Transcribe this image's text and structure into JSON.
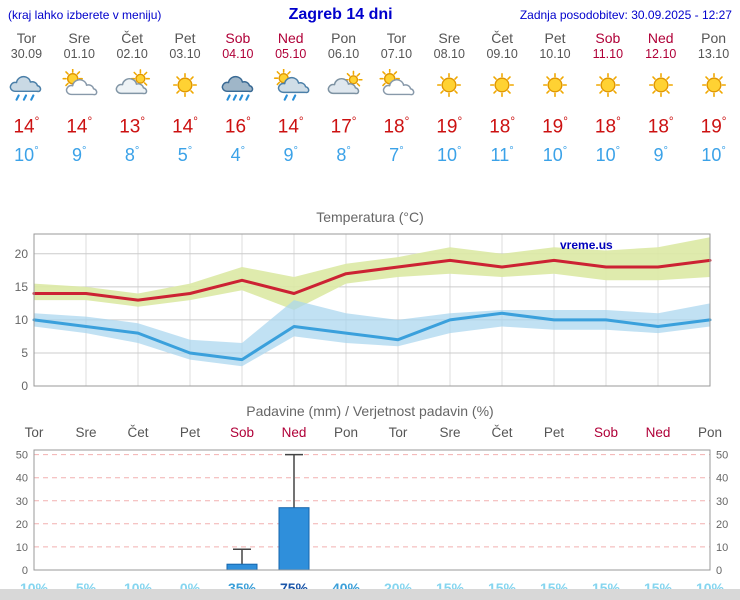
{
  "header": {
    "menu_note": "(kraj lahko izberete v meniju)",
    "title": "Zagreb 14 dni",
    "last_update": "Zadnja posodobitev: 30.09.2025 - 12:27"
  },
  "symbols": {
    "degree": "°"
  },
  "colors": {
    "link_blue": "#0000cc",
    "weekday_gray": "#555555",
    "weekend_red": "#b00038",
    "high_temp_red": "#cc1111",
    "low_temp_blue": "#3ba2e8",
    "prob_light": "#85d5ef",
    "prob_medium": "#3b9fd8",
    "prob_dark": "#1a55a8",
    "bottom_bar_gray": "#d8d8d8",
    "watermark_blue": "#0000bb"
  },
  "days": [
    {
      "name": "Tor",
      "date": "30.09",
      "weekend": false,
      "icon": "rain",
      "high": 14,
      "low": 10
    },
    {
      "name": "Sre",
      "date": "01.10",
      "weekend": false,
      "icon": "partly-cloudy",
      "high": 14,
      "low": 9
    },
    {
      "name": "Čet",
      "date": "02.10",
      "weekend": false,
      "icon": "mostly-cloudy",
      "high": 13,
      "low": 8
    },
    {
      "name": "Pet",
      "date": "03.10",
      "weekend": false,
      "icon": "sunny",
      "high": 14,
      "low": 5
    },
    {
      "name": "Sob",
      "date": "04.10",
      "weekend": true,
      "icon": "heavy-rain",
      "high": 16,
      "low": 4
    },
    {
      "name": "Ned",
      "date": "05.10",
      "weekend": true,
      "icon": "sun-showers",
      "high": 14,
      "low": 9
    },
    {
      "name": "Pon",
      "date": "06.10",
      "weekend": false,
      "icon": "cloudy",
      "high": 17,
      "low": 8
    },
    {
      "name": "Tor",
      "date": "07.10",
      "weekend": false,
      "icon": "partly-cloudy",
      "high": 18,
      "low": 7
    },
    {
      "name": "Sre",
      "date": "08.10",
      "weekend": false,
      "icon": "sunny",
      "high": 19,
      "low": 10
    },
    {
      "name": "Čet",
      "date": "09.10",
      "weekend": false,
      "icon": "sunny",
      "high": 18,
      "low": 11
    },
    {
      "name": "Pet",
      "date": "10.10",
      "weekend": false,
      "icon": "sunny",
      "high": 19,
      "low": 10
    },
    {
      "name": "Sob",
      "date": "11.10",
      "weekend": true,
      "icon": "sunny",
      "high": 18,
      "low": 10
    },
    {
      "name": "Ned",
      "date": "12.10",
      "weekend": true,
      "icon": "sunny",
      "high": 18,
      "low": 9
    },
    {
      "name": "Pon",
      "date": "13.10",
      "weekend": false,
      "icon": "sunny",
      "high": 19,
      "low": 10
    }
  ],
  "chart_data": [
    {
      "id": "temperature",
      "type": "line",
      "title": "Temperatura (°C)",
      "watermark": "vreme.us",
      "x_labels": [
        "Tor",
        "Sre",
        "Čet",
        "Pet",
        "Sob",
        "Ned",
        "Pon",
        "Tor",
        "Sre",
        "Čet",
        "Pet",
        "Sob",
        "Ned",
        "Pon"
      ],
      "ylim": [
        0,
        23
      ],
      "yticks": [
        0,
        5,
        10,
        15,
        20
      ],
      "grid": true,
      "series": [
        {
          "name": "max-temp",
          "color": "#cc2233",
          "values": [
            14,
            14,
            13,
            14,
            16,
            14,
            17,
            18,
            19,
            18,
            19,
            18,
            18,
            19
          ]
        },
        {
          "name": "min-temp",
          "color": "#3aa0dc",
          "values": [
            10,
            9,
            8,
            5,
            4,
            9,
            8,
            7,
            10,
            11,
            10,
            10,
            9,
            10
          ]
        }
      ],
      "bands": [
        {
          "name": "max-temp-range",
          "color": "#dce9a4",
          "opacity": 0.9,
          "upper": [
            15.5,
            15,
            14,
            15.5,
            18,
            16.5,
            18.5,
            19.5,
            21,
            20,
            21,
            20.5,
            21,
            22.5
          ],
          "lower": [
            13,
            13,
            12,
            13,
            14.5,
            11.5,
            15.5,
            16.5,
            17,
            16.5,
            17,
            16,
            16,
            16.5
          ]
        },
        {
          "name": "min-temp-range",
          "color": "#a9d6ee",
          "opacity": 0.72,
          "upper": [
            11,
            10.5,
            9.5,
            7,
            6.5,
            13,
            11,
            10,
            11,
            11.5,
            11.5,
            11.5,
            11,
            12.5
          ],
          "lower": [
            9,
            8,
            6.5,
            4,
            3,
            7.5,
            6.5,
            6,
            8,
            9,
            8.5,
            8.5,
            8,
            9
          ]
        }
      ]
    },
    {
      "id": "precipitation",
      "type": "bar",
      "title": "Padavine (mm) / Verjetnost padavin (%)",
      "x_labels": [
        "Tor",
        "Sre",
        "Čet",
        "Pet",
        "Sob",
        "Ned",
        "Pon",
        "Tor",
        "Sre",
        "Čet",
        "Pet",
        "Sob",
        "Ned",
        "Pon"
      ],
      "ylim": [
        0,
        52
      ],
      "yticks": [
        0,
        10,
        20,
        30,
        40,
        50
      ],
      "bar_color": "#2f8fdb",
      "bars_mm": [
        0,
        0,
        0,
        0,
        2.5,
        27,
        0,
        0,
        0,
        0,
        0,
        0,
        0,
        0
      ],
      "whiskers_mm": [
        0,
        0,
        0,
        0,
        9,
        50,
        0,
        0,
        0,
        0,
        0,
        0,
        0,
        0
      ],
      "probabilities": [
        "10%",
        "5%",
        "10%",
        "0%",
        "35%",
        "75%",
        "40%",
        "20%",
        "15%",
        "15%",
        "15%",
        "15%",
        "15%",
        "10%"
      ]
    }
  ]
}
